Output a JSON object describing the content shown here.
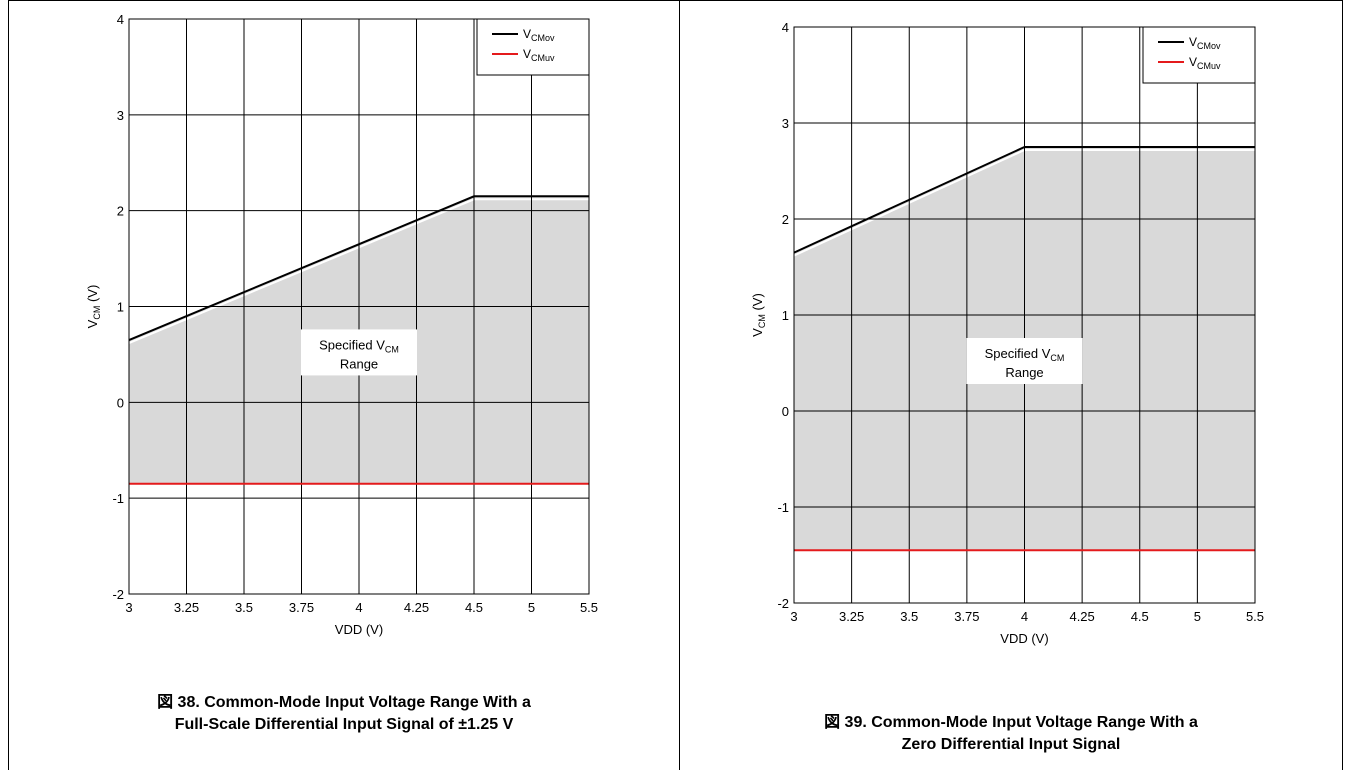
{
  "charts": [
    {
      "caption_line1": "図 38. Common-Mode Input Voltage Range With a",
      "caption_line2": "Full-Scale Differential Input Signal of ±1.25 V",
      "xlabel": "VDD (V)",
      "ylabel_main": "V",
      "ylabel_sub": "CM",
      "ylabel_unit": " (V)",
      "region_label_line1_main": "Specified V",
      "region_label_line1_sub": "CM",
      "region_label_line2": "Range",
      "legend": [
        {
          "main": "V",
          "sub": "CMov"
        },
        {
          "main": "V",
          "sub": "CMuv"
        }
      ],
      "xticks": [
        "3",
        "3.25",
        "3.5",
        "3.75",
        "4",
        "4.25",
        "4.5",
        "5",
        "5.5"
      ],
      "yticks": [
        "4",
        "3",
        "2",
        "1",
        "0",
        "-1",
        "-2"
      ]
    },
    {
      "caption_line1": "図 39. Common-Mode Input Voltage Range With a",
      "caption_line2": "Zero Differential Input Signal",
      "xlabel": "VDD (V)",
      "ylabel_main": "V",
      "ylabel_sub": "CM",
      "ylabel_unit": " (V)",
      "region_label_line1_main": "Specified V",
      "region_label_line1_sub": "CM",
      "region_label_line2": "Range",
      "legend": [
        {
          "main": "V",
          "sub": "CMov"
        },
        {
          "main": "V",
          "sub": "CMuv"
        }
      ],
      "xticks": [
        "3",
        "3.25",
        "3.5",
        "3.75",
        "4",
        "4.25",
        "4.5",
        "5",
        "5.5"
      ],
      "yticks": [
        "4",
        "3",
        "2",
        "1",
        "0",
        "-1",
        "-2"
      ]
    }
  ],
  "chart_data": [
    {
      "type": "line",
      "title": "",
      "xlabel": "VDD (V)",
      "ylabel": "VCM (V)",
      "xticks": [
        3,
        3.25,
        3.5,
        3.75,
        4,
        4.25,
        4.5,
        5,
        5.5
      ],
      "ylim": [
        -2,
        4
      ],
      "grid": true,
      "legend_placement": "top-right",
      "series": [
        {
          "name": "VCMov",
          "color": "#000000",
          "points": [
            [
              3,
              0.65
            ],
            [
              4.5,
              2.15
            ],
            [
              5.5,
              2.15
            ]
          ]
        },
        {
          "name": "VCMuv",
          "color": "#e41a1c",
          "points": [
            [
              3,
              -0.85
            ],
            [
              5.5,
              -0.85
            ]
          ]
        }
      ],
      "shaded_region": {
        "label": "Specified VCM Range",
        "color": "#d9d9d9",
        "between": [
          "VCMuv",
          "VCMov"
        ]
      }
    },
    {
      "type": "line",
      "title": "",
      "xlabel": "VDD (V)",
      "ylabel": "VCM (V)",
      "xticks": [
        3,
        3.25,
        3.5,
        3.75,
        4,
        4.25,
        4.5,
        5,
        5.5
      ],
      "ylim": [
        -2,
        4
      ],
      "grid": true,
      "legend_placement": "top-right",
      "series": [
        {
          "name": "VCMov",
          "color": "#000000",
          "points": [
            [
              3,
              1.65
            ],
            [
              4,
              2.75
            ],
            [
              5.5,
              2.75
            ]
          ]
        },
        {
          "name": "VCMuv",
          "color": "#e41a1c",
          "points": [
            [
              3,
              -1.45
            ],
            [
              5.5,
              -1.45
            ]
          ]
        }
      ],
      "shaded_region": {
        "label": "Specified VCM Range",
        "color": "#d9d9d9",
        "between": [
          "VCMuv",
          "VCMov"
        ]
      }
    }
  ]
}
